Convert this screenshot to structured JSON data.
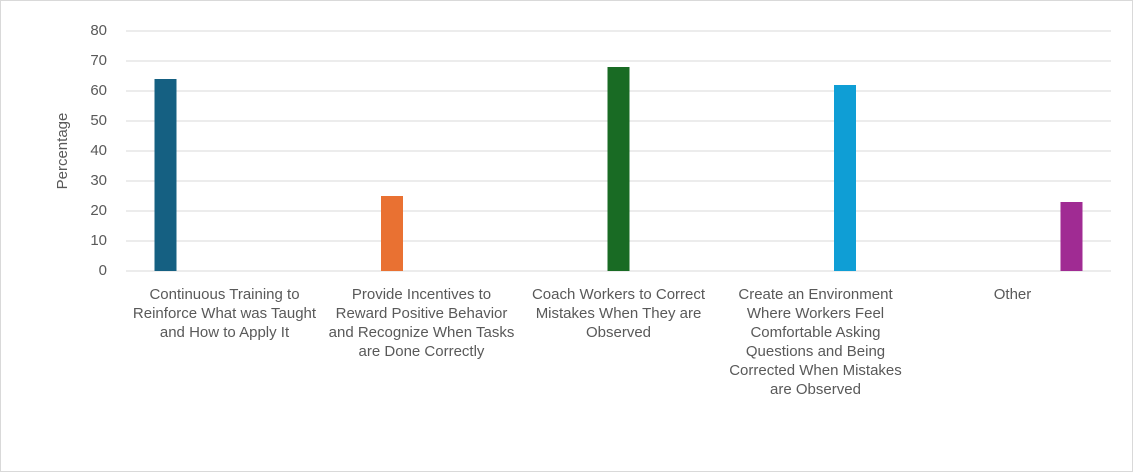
{
  "chart_data": {
    "type": "bar",
    "ylabel": "Percentage",
    "categories": [
      "Continuous Training to Reinforce What was Taught and How to Apply It",
      "Provide Incentives to Reward Positive Behavior and Recognize When Tasks are Done Correctly",
      "Coach Workers to Correct Mistakes When They are Observed",
      "Create an Environment Where Workers Feel Comfortable Asking Questions and Being Corrected When Mistakes are Observed",
      "Other"
    ],
    "series": [
      {
        "color": "#156082",
        "values": [
          64,
          null,
          null,
          null,
          null
        ]
      },
      {
        "color": "#e97132",
        "values": [
          null,
          25,
          null,
          null,
          null
        ]
      },
      {
        "color": "#196b24",
        "values": [
          null,
          null,
          68,
          null,
          null
        ]
      },
      {
        "color": "#0f9ed5",
        "values": [
          null,
          null,
          null,
          62,
          null
        ]
      },
      {
        "color": "#a02b93",
        "values": [
          null,
          null,
          null,
          null,
          23
        ]
      }
    ],
    "ylim": [
      0,
      80
    ],
    "yticks": [
      0,
      10,
      20,
      30,
      40,
      50,
      60,
      70,
      80
    ],
    "grid": true
  }
}
